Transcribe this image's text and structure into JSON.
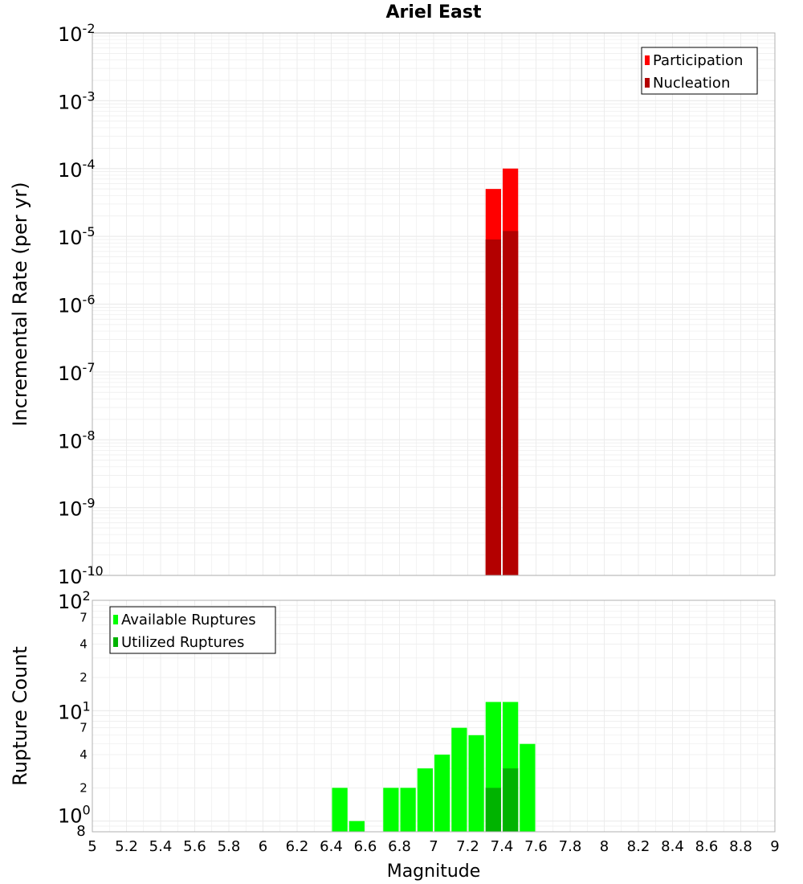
{
  "title": "Ariel East",
  "xlabel": "Magnitude",
  "x_ticks": [
    "5",
    "5.2",
    "5.4",
    "5.6",
    "5.8",
    "6",
    "6.2",
    "6.4",
    "6.6",
    "6.8",
    "7",
    "7.2",
    "7.4",
    "7.6",
    "7.8",
    "8",
    "8.2",
    "8.4",
    "8.6",
    "8.8",
    "9"
  ],
  "colors": {
    "participation": "#ff0000",
    "nucleation": "#b30000",
    "available": "#00ff00",
    "utilized": "#00b300",
    "grid": "#ececec",
    "axis": "#b0b0b0"
  },
  "chart_data": [
    {
      "type": "bar",
      "ylabel": "Incremental Rate (per yr)",
      "y_scale": "log",
      "ylim": [
        1e-10,
        0.01
      ],
      "xlim": [
        5,
        9
      ],
      "grid": true,
      "legend_position": "top-right",
      "y_ticks": [
        {
          "base": "10",
          "exp": "-10"
        },
        {
          "base": "10",
          "exp": "-9"
        },
        {
          "base": "10",
          "exp": "-8"
        },
        {
          "base": "10",
          "exp": "-7"
        },
        {
          "base": "10",
          "exp": "-6"
        },
        {
          "base": "10",
          "exp": "-5"
        },
        {
          "base": "10",
          "exp": "-4"
        },
        {
          "base": "10",
          "exp": "-3"
        },
        {
          "base": "10",
          "exp": "-2"
        }
      ],
      "x": [
        7.35,
        7.45
      ],
      "series": [
        {
          "name": "Participation",
          "values": [
            5e-05,
            0.0001
          ]
        },
        {
          "name": "Nucleation",
          "values": [
            9e-06,
            1.2e-05
          ]
        }
      ]
    },
    {
      "type": "bar",
      "ylabel": "Rupture Count",
      "y_scale": "log",
      "ylim": [
        0.8,
        100
      ],
      "xlim": [
        5,
        9
      ],
      "grid": true,
      "legend_position": "top-left",
      "y_ticks": [
        {
          "label": "8"
        },
        {
          "base": "10",
          "exp": "0"
        },
        {
          "label": "2"
        },
        {
          "label": "4"
        },
        {
          "label": "7"
        },
        {
          "base": "10",
          "exp": "1"
        },
        {
          "label": "2"
        },
        {
          "label": "4"
        },
        {
          "label": "7"
        },
        {
          "base": "10",
          "exp": "2"
        }
      ],
      "x": [
        6.45,
        6.55,
        6.75,
        6.85,
        6.95,
        7.05,
        7.15,
        7.25,
        7.35,
        7.45,
        7.55
      ],
      "series": [
        {
          "name": "Available Ruptures",
          "values": [
            2,
            1,
            2,
            2,
            3,
            4,
            7,
            6,
            12,
            12,
            5
          ]
        },
        {
          "name": "Utilized Ruptures",
          "values": [
            0,
            0,
            0,
            0,
            0,
            0,
            0,
            0,
            2,
            3,
            0
          ]
        }
      ]
    }
  ]
}
